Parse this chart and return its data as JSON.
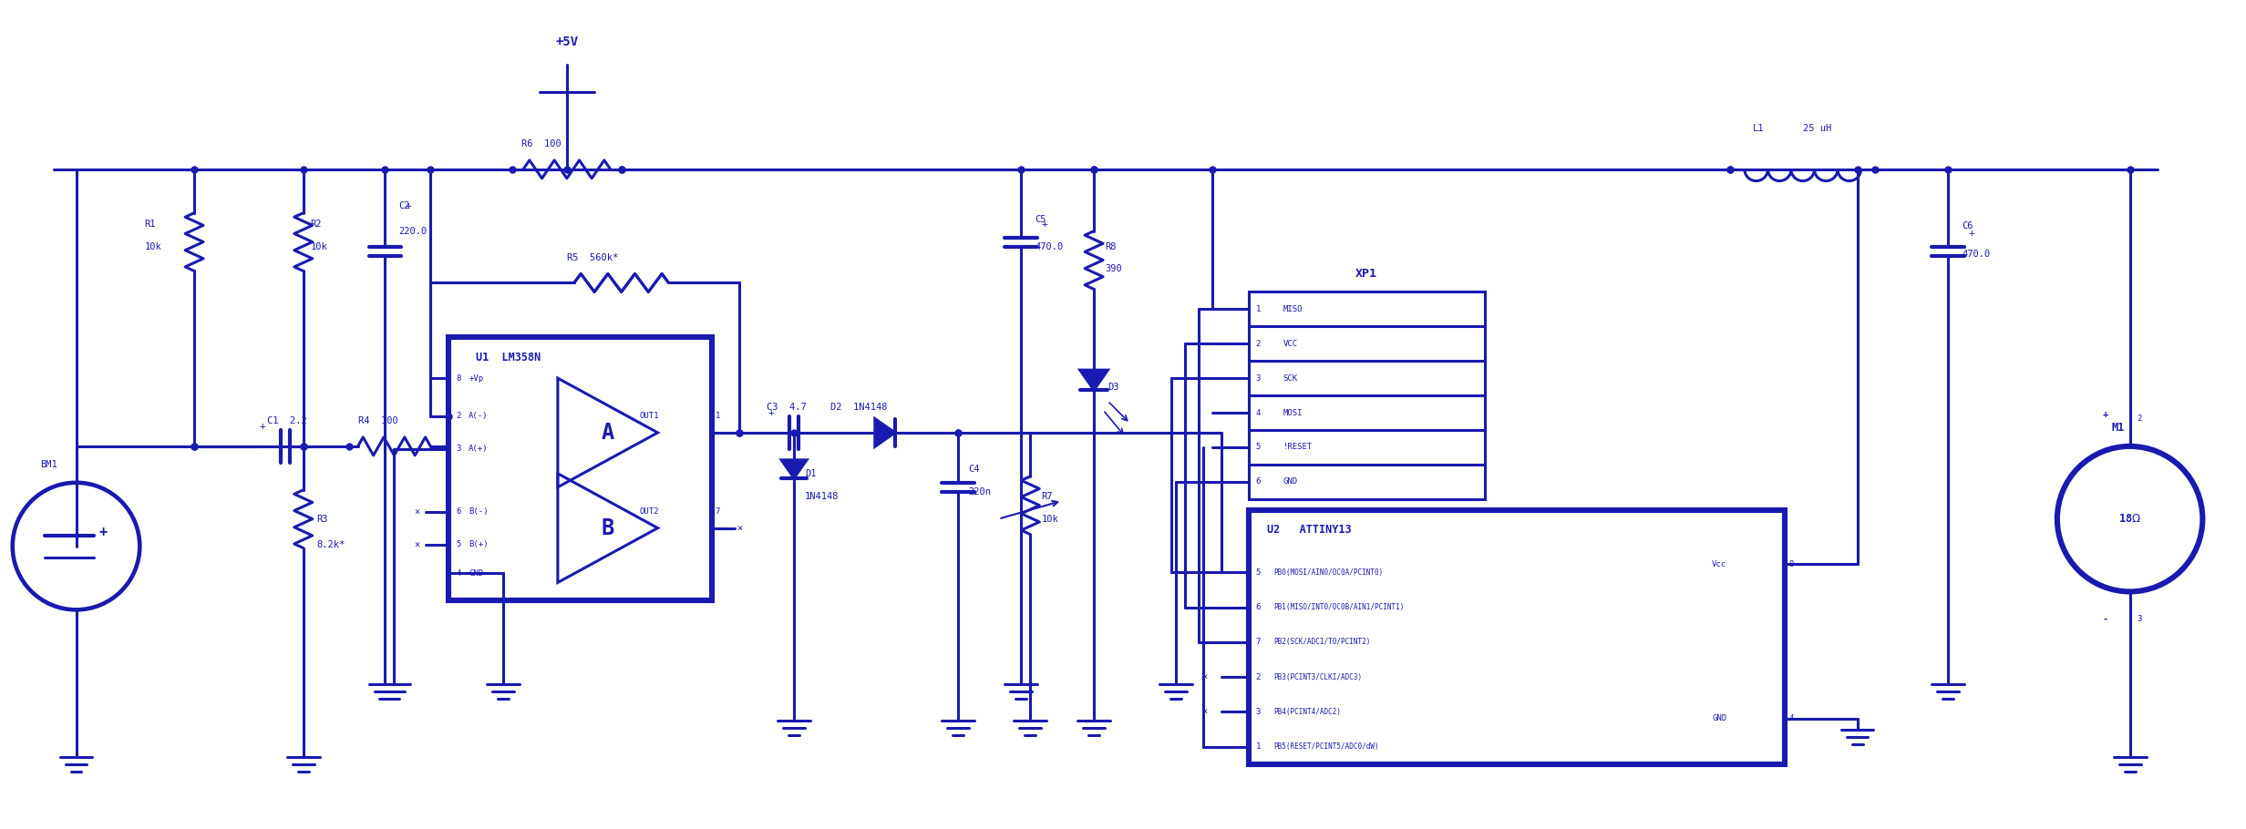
{
  "bg_color": "#ffffff",
  "line_color": "#1a1ab0",
  "figsize": [
    24.64,
    9.1
  ],
  "dpi": 100,
  "xp1_pins": [
    "MISO",
    "VCC",
    "SCK",
    "MOSI",
    "!RESET",
    "GND"
  ],
  "u2_pins_left": [
    [
      "5",
      "PB0(MOSI/AIN0/OC0A/PCINT0)"
    ],
    [
      "6",
      "PB1(MISO/INT0/OC0B/AIN1/PCINT1)"
    ],
    [
      "7",
      "PB2(SCK/ADC1/T0/PCINT2)"
    ],
    [
      "2",
      "PB3(PCINT3/CLKI/ADC3)"
    ],
    [
      "3",
      "PB4(PCINT4/ADC2)"
    ],
    [
      "1",
      "PB5(RESET/PCINT5/ADC0/dW)"
    ]
  ]
}
